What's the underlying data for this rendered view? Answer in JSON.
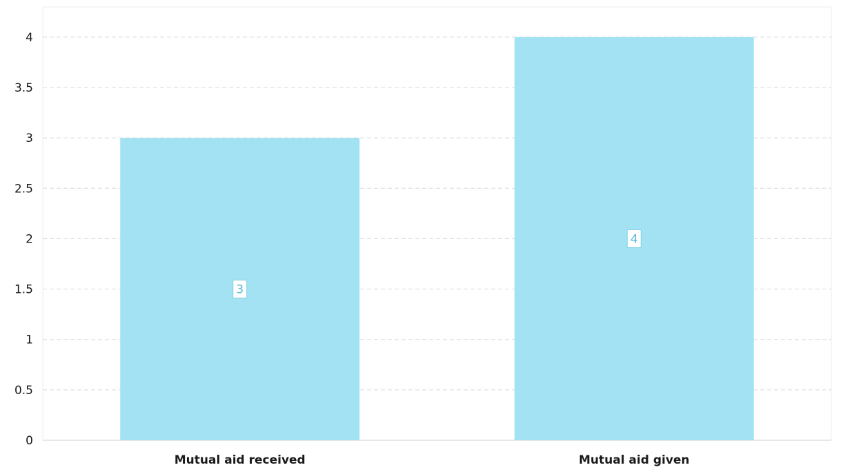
{
  "chart_data": {
    "type": "bar",
    "categories": [
      "Mutual aid received",
      "Mutual aid given"
    ],
    "values": [
      3,
      4
    ],
    "title": "",
    "xlabel": "",
    "ylabel": "",
    "ylim": [
      0,
      4.3
    ],
    "yticks": [
      "0",
      "0.5",
      "1",
      "1.5",
      "2",
      "2.5",
      "3",
      "3.5",
      "4"
    ],
    "data_labels": [
      "3",
      "4"
    ],
    "grid": true,
    "legend": "none",
    "colors": {
      "bar": "#a3e2f2",
      "label_text": "#5bb9d6",
      "label_border": "#7fcfe6"
    }
  }
}
